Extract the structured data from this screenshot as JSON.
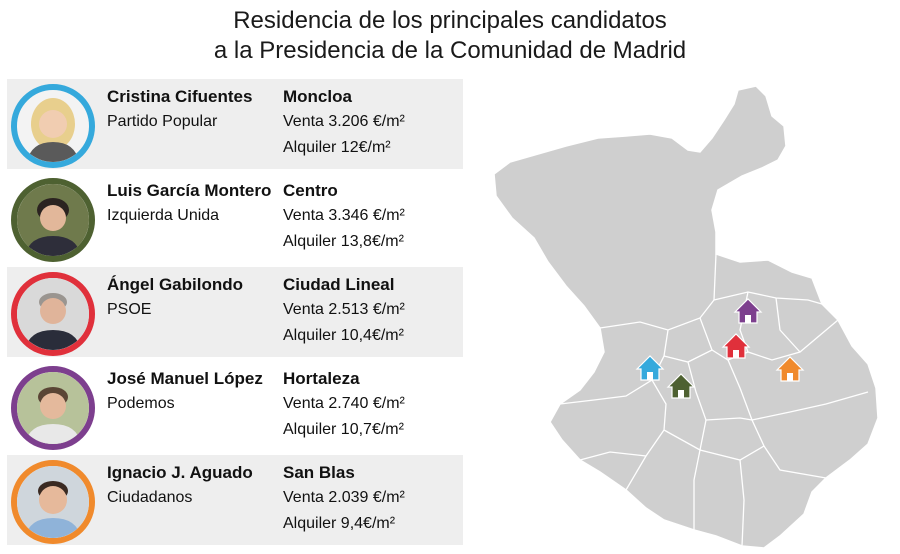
{
  "title": {
    "line1": "Residencia de los principales candidatos",
    "line2": "a la Presidencia de la Comunidad de Madrid"
  },
  "candidates": [
    {
      "name": "Cristina Cifuentes",
      "party": "Partido Popular",
      "district": "Moncloa",
      "sale": "Venta 3.206 €/m²",
      "rent": "Alquiler 12€/m²",
      "color": "#35a9dc"
    },
    {
      "name": "Luis García Montero",
      "party": "Izquierda Unida",
      "district": "Centro",
      "sale": "Venta 3.346 €/m²",
      "rent": "Alquiler 13,8€/m²",
      "color": "#4e6131"
    },
    {
      "name": "Ángel Gabilondo",
      "party": "PSOE",
      "district": "Ciudad Lineal",
      "sale": "Venta 2.513 €/m²",
      "rent": "Alquiler 10,4€/m²",
      "color": "#e0303b"
    },
    {
      "name": "José Manuel López",
      "party": "Podemos",
      "district": "Hortaleza",
      "sale": "Venta 2.740 €/m²",
      "rent": "Alquiler 10,7€/m²",
      "color": "#7d3f8e"
    },
    {
      "name": "Ignacio J. Aguado",
      "party": "Ciudadanos",
      "district": "San Blas",
      "sale": "Venta 2.039 €/m²",
      "rent": "Alquiler 9,4€/m²",
      "color": "#f08a2c"
    }
  ],
  "map": {
    "fill": "#cfcfcf",
    "border": "#ffffff",
    "icons": [
      "house-icon",
      "portrait-icon"
    ]
  }
}
